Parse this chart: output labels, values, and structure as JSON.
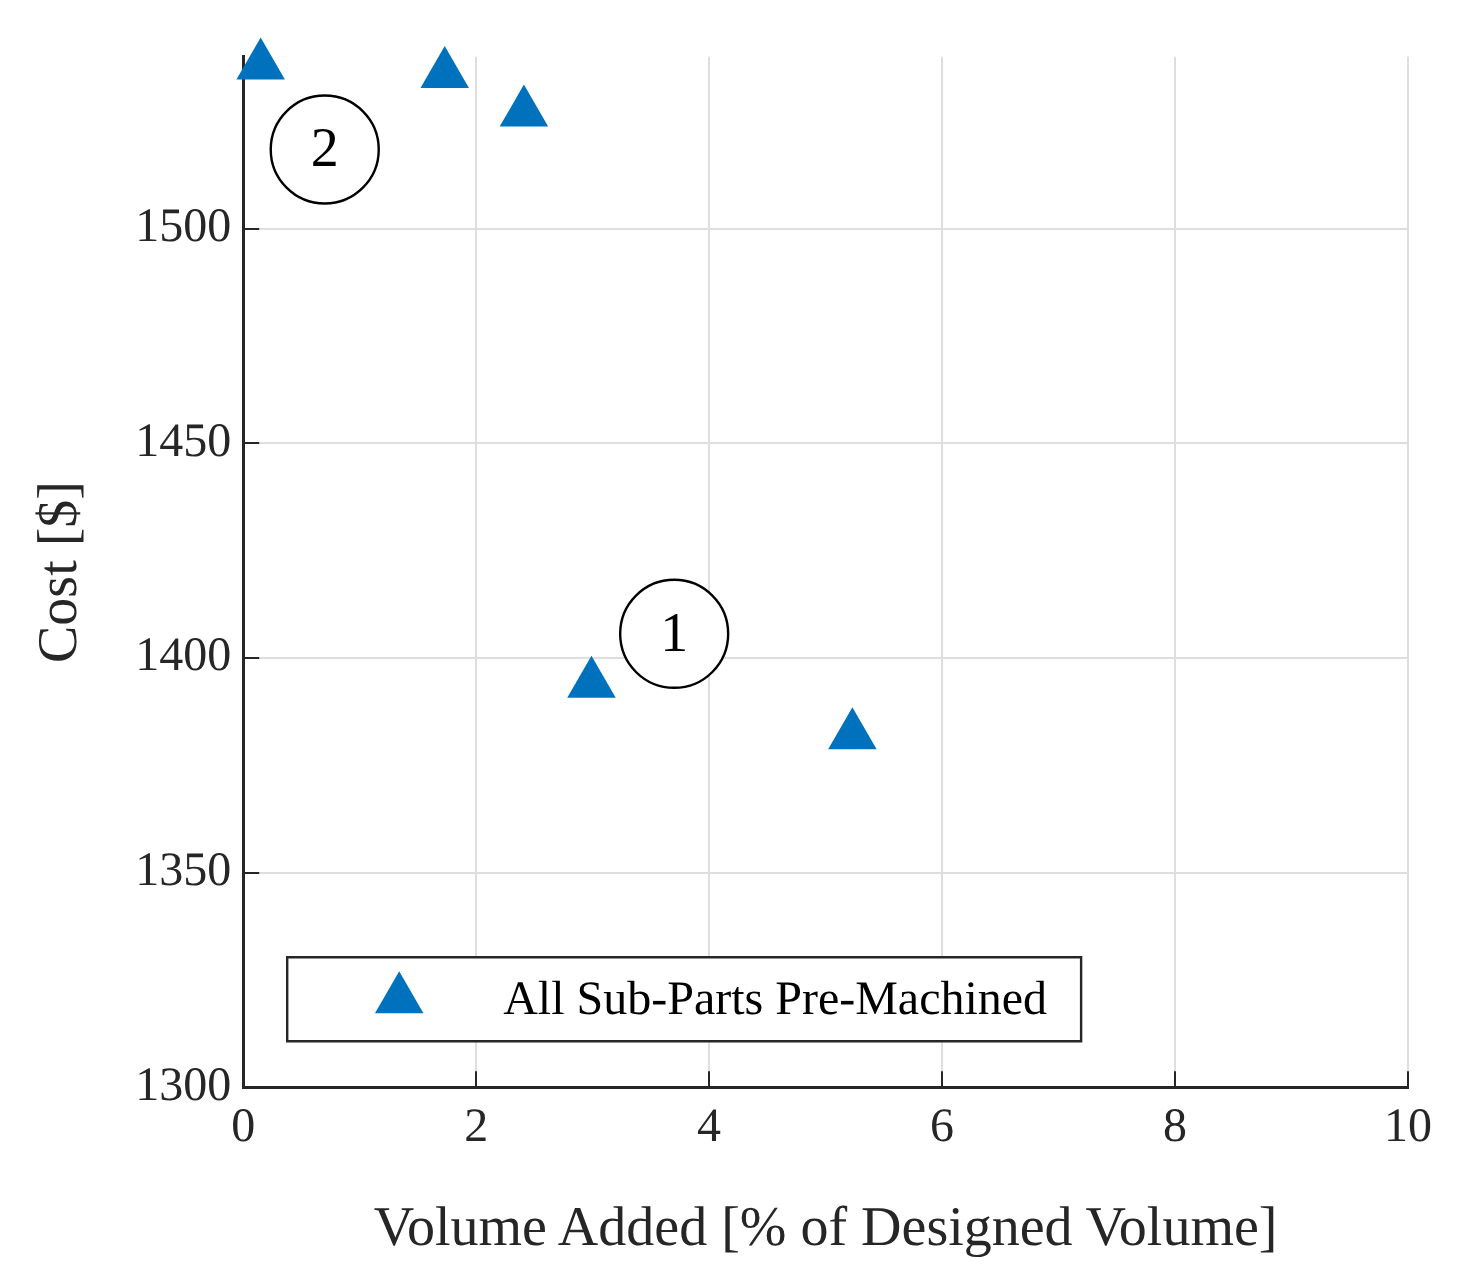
{
  "chart_data": {
    "type": "scatter",
    "xlabel": "Volume Added [% of Designed Volume]",
    "ylabel": "Cost [$]",
    "xlim": [
      0,
      10
    ],
    "xticks": [
      0,
      2,
      4,
      6,
      8,
      10
    ],
    "ylim": [
      1300,
      1540
    ],
    "yticks": [
      1300,
      1350,
      1400,
      1450,
      1500
    ],
    "series": [
      {
        "name": "All Sub-Parts Pre-Machined",
        "color": "#0072bd",
        "x": [
          0.15,
          1.73,
          2.41,
          2.99,
          5.23
        ],
        "values": [
          1538,
          1536,
          1527,
          1394,
          1382
        ]
      }
    ],
    "annotations": [
      "1",
      "2"
    ],
    "grid": true,
    "legend": "bottom left",
    "marker": "triangle"
  }
}
